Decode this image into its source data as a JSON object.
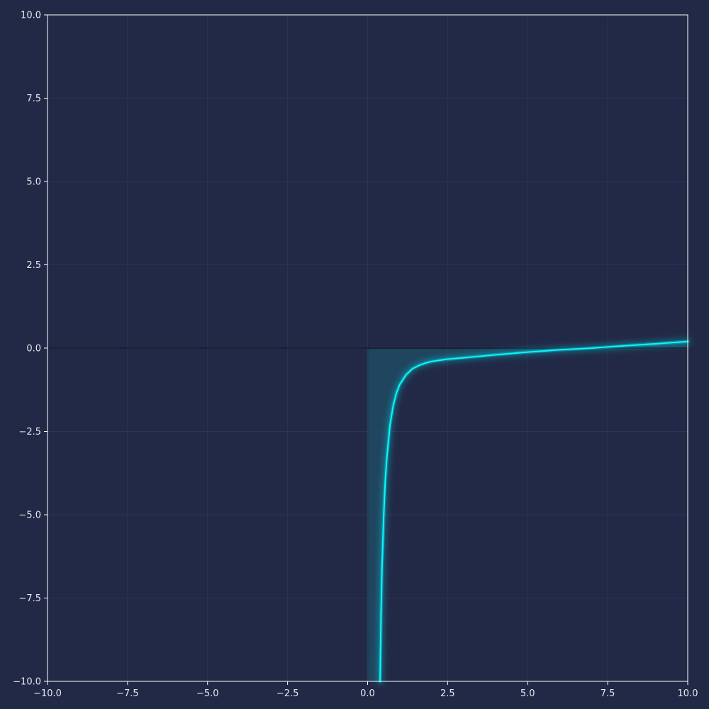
{
  "chart_data": {
    "type": "line",
    "title": "",
    "xlabel": "",
    "ylabel": "",
    "xlim": [
      -10,
      10
    ],
    "ylim": [
      -10,
      10
    ],
    "grid": true,
    "legend": "none",
    "x_ticks": [
      -10.0,
      -7.5,
      -5.0,
      -2.5,
      0.0,
      2.5,
      5.0,
      7.5,
      10.0
    ],
    "y_ticks": [
      -10.0,
      -7.5,
      -5.0,
      -2.5,
      0.0,
      2.5,
      5.0,
      7.5,
      10.0
    ],
    "x_tick_labels": [
      "−10.0",
      "−7.5",
      "−5.0",
      "−2.5",
      "0.0",
      "2.5",
      "5.0",
      "7.5",
      "10.0"
    ],
    "y_tick_labels": [
      "−10.0",
      "−7.5",
      "−5.0",
      "−2.5",
      "0.0",
      "2.5",
      "5.0",
      "7.5",
      "10.0"
    ],
    "series": [
      {
        "name": "f(x)",
        "color": "#08F7FE",
        "fill_color": "#1f4a63",
        "x": [
          0.39,
          0.4,
          0.42,
          0.45,
          0.5,
          0.55,
          0.6,
          0.7,
          0.8,
          0.9,
          1.0,
          1.2,
          1.4,
          1.6,
          1.8,
          2.0,
          2.5,
          3.0,
          4.0,
          5.0,
          6.0,
          7.0,
          8.0,
          9.0,
          10.0
        ],
        "values": [
          -10.0,
          -9.3,
          -8.0,
          -6.6,
          -5.1,
          -4.0,
          -3.3,
          -2.3,
          -1.72,
          -1.35,
          -1.1,
          -0.8,
          -0.62,
          -0.52,
          -0.45,
          -0.4,
          -0.33,
          -0.29,
          -0.2,
          -0.12,
          -0.05,
          0.0,
          0.07,
          0.13,
          0.2
        ]
      }
    ],
    "fill_between": {
      "baseline": 0,
      "x_from": 0.0,
      "x_to": 10.0
    }
  },
  "colors": {
    "background": "#212946",
    "grid": "#2a3459",
    "axis": "#ffffff",
    "text": "#e6e8ef",
    "line": "#08F7FE"
  }
}
